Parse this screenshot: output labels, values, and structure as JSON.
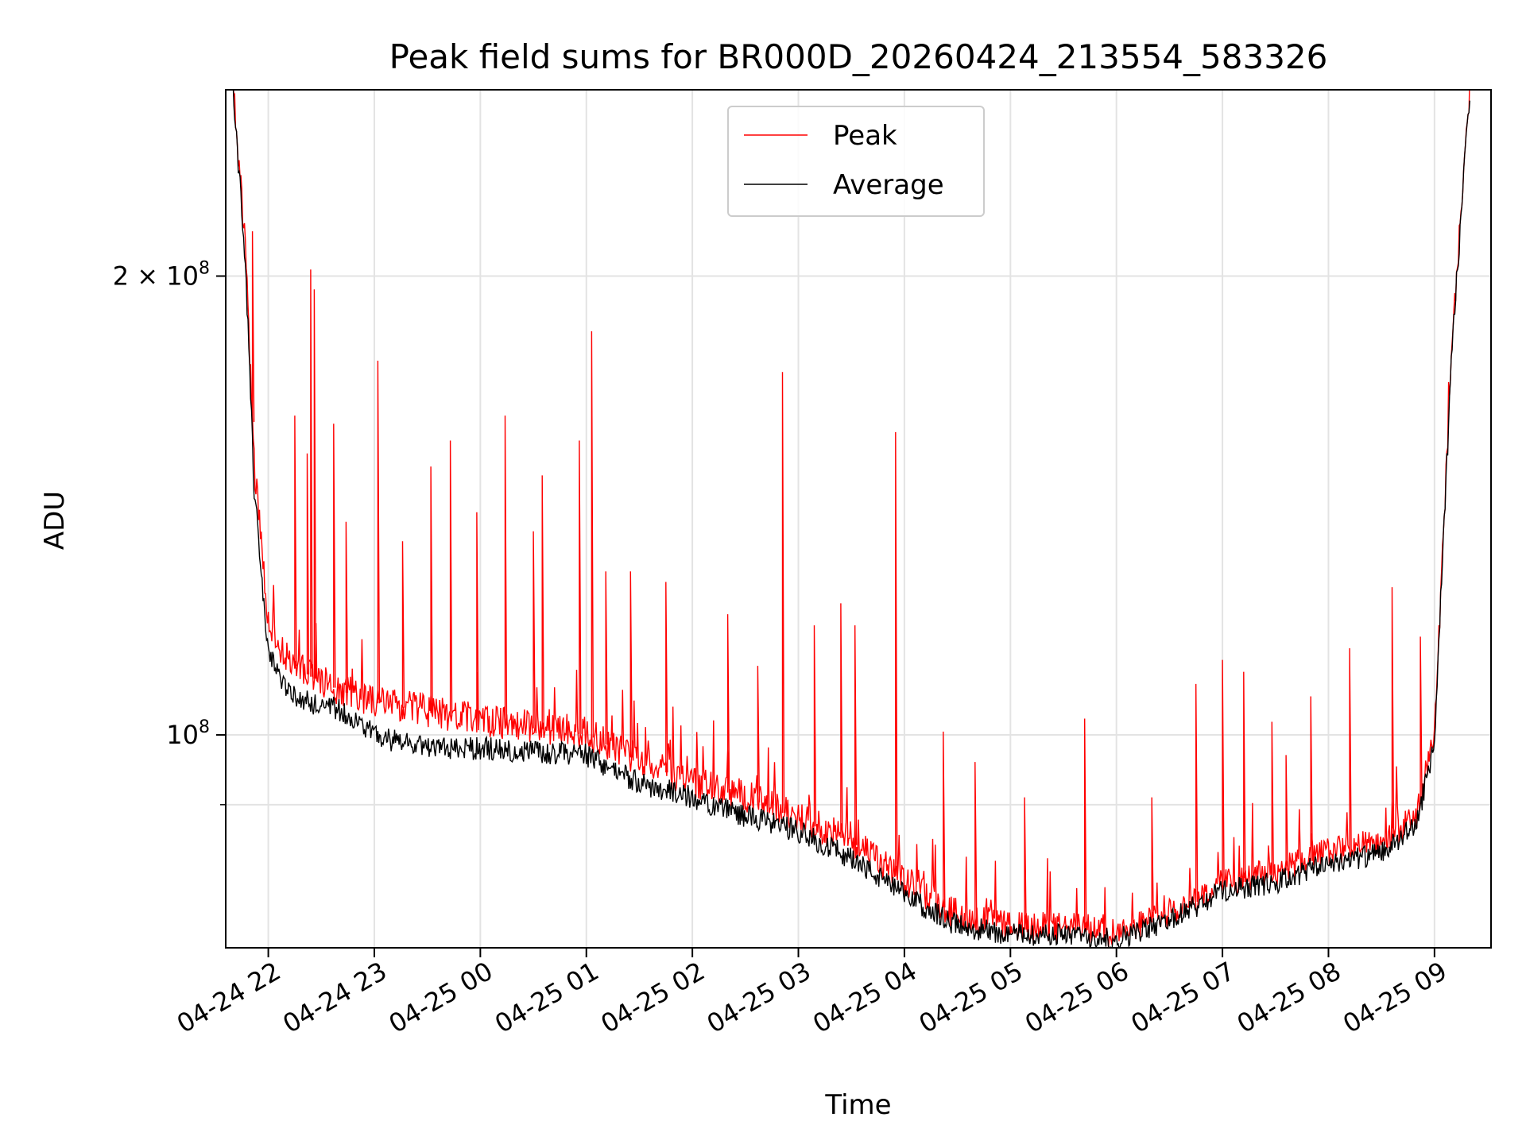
{
  "chart_data": {
    "type": "line",
    "title": "Peak field sums for BR000D_20260424_213554_583326",
    "xlabel": "Time",
    "ylabel": "ADU",
    "y_scale": "log",
    "ylim": [
      72500000,
      265000000
    ],
    "xlim": [
      "2026-04-24 21:35:54",
      "2026-04-25 09:32:00"
    ],
    "grid": true,
    "legend_position": "upper center",
    "x_tick_labels": [
      "04-24 22",
      "04-24 23",
      "04-25 00",
      "04-25 01",
      "04-25 02",
      "04-25 03",
      "04-25 04",
      "04-25 05",
      "04-25 06",
      "04-25 07",
      "04-25 08",
      "04-25 09"
    ],
    "x_tick_values": [
      "2026-04-24 22:00",
      "2026-04-24 23:00",
      "2026-04-25 00:00",
      "2026-04-25 01:00",
      "2026-04-25 02:00",
      "2026-04-25 03:00",
      "2026-04-25 04:00",
      "2026-04-25 05:00",
      "2026-04-25 06:00",
      "2026-04-25 07:00",
      "2026-04-25 08:00",
      "2026-04-25 09:00"
    ],
    "y_ticks": [
      {
        "value": 100000000,
        "label": "10",
        "sup": "8"
      },
      {
        "value": 200000000,
        "label": "2 × 10",
        "sup": "8"
      }
    ],
    "y_minor_ticks": [
      90000000
    ],
    "colors": {
      "peak": "#ff0000",
      "average": "#000000"
    },
    "series": [
      {
        "name": "Peak",
        "color": "#ff0000",
        "x": [
          "2026-04-24 21:40",
          "2026-04-24 21:47",
          "2026-04-24 21:52",
          "2026-04-24 22:00",
          "2026-04-24 22:10",
          "2026-04-24 22:25",
          "2026-04-24 22:40",
          "2026-04-24 23:00",
          "2026-04-24 23:20",
          "2026-04-24 23:40",
          "2026-04-25 00:00",
          "2026-04-25 00:30",
          "2026-04-25 01:00",
          "2026-04-25 01:30",
          "2026-04-25 02:00",
          "2026-04-25 02:30",
          "2026-04-25 03:00",
          "2026-04-25 03:30",
          "2026-04-25 04:00",
          "2026-04-25 04:30",
          "2026-04-25 05:00",
          "2026-04-25 05:30",
          "2026-04-25 06:00",
          "2026-04-25 06:30",
          "2026-04-25 07:00",
          "2026-04-25 07:30",
          "2026-04-25 08:00",
          "2026-04-25 08:30",
          "2026-04-25 08:50",
          "2026-04-25 09:00",
          "2026-04-25 09:10",
          "2026-04-25 09:20"
        ],
        "y": [
          265000000,
          210000000,
          150000000,
          118000000,
          112000000,
          109000000,
          107000000,
          105000000,
          104000000,
          103000000,
          102000000,
          101000000,
          100000000,
          96000000,
          93000000,
          91000000,
          88000000,
          85000000,
          80000000,
          76000000,
          74500000,
          74500000,
          74000000,
          76000000,
          79500000,
          81000000,
          83500000,
          84500000,
          88000000,
          100000000,
          180000000,
          265000000
        ],
        "spikes": [
          [
            "2026-04-24 21:51",
            214000000
          ],
          [
            "2026-04-24 22:15",
            162000000
          ],
          [
            "2026-04-24 22:22",
            153000000
          ],
          [
            "2026-04-24 22:24",
            202000000
          ],
          [
            "2026-04-24 22:26",
            196000000
          ],
          [
            "2026-04-24 22:37",
            160000000
          ],
          [
            "2026-04-24 22:44",
            138000000
          ],
          [
            "2026-04-24 23:02",
            176000000
          ],
          [
            "2026-04-24 23:16",
            134000000
          ],
          [
            "2026-04-24 23:32",
            150000000
          ],
          [
            "2026-04-24 23:43",
            156000000
          ],
          [
            "2026-04-24 23:58",
            140000000
          ],
          [
            "2026-04-25 00:14",
            162000000
          ],
          [
            "2026-04-25 00:30",
            136000000
          ],
          [
            "2026-04-25 00:35",
            148000000
          ],
          [
            "2026-04-25 00:56",
            156000000
          ],
          [
            "2026-04-25 01:03",
            184000000
          ],
          [
            "2026-04-25 01:11",
            128000000
          ],
          [
            "2026-04-25 01:25",
            128000000
          ],
          [
            "2026-04-25 01:45",
            126000000
          ],
          [
            "2026-04-25 02:20",
            120000000
          ],
          [
            "2026-04-25 02:37",
            111000000
          ],
          [
            "2026-04-25 02:51",
            173000000
          ],
          [
            "2026-04-25 03:09",
            118000000
          ],
          [
            "2026-04-25 03:24",
            122000000
          ],
          [
            "2026-04-25 03:32",
            118000000
          ],
          [
            "2026-04-25 03:55",
            158000000
          ],
          [
            "2026-04-25 04:22",
            100500000
          ],
          [
            "2026-04-25 04:40",
            96000000
          ],
          [
            "2026-04-25 05:08",
            91000000
          ],
          [
            "2026-04-25 05:42",
            102500000
          ],
          [
            "2026-04-25 06:20",
            91000000
          ],
          [
            "2026-04-25 06:45",
            108000000
          ],
          [
            "2026-04-25 07:00",
            112000000
          ],
          [
            "2026-04-25 07:12",
            110000000
          ],
          [
            "2026-04-25 07:28",
            102000000
          ],
          [
            "2026-04-25 07:36",
            97000000
          ],
          [
            "2026-04-25 07:50",
            106000000
          ],
          [
            "2026-04-25 08:12",
            114000000
          ],
          [
            "2026-04-25 08:36",
            125000000
          ],
          [
            "2026-04-25 08:52",
            116000000
          ]
        ]
      },
      {
        "name": "Average",
        "color": "#000000",
        "x": [
          "2026-04-24 21:40",
          "2026-04-24 21:47",
          "2026-04-24 21:52",
          "2026-04-24 22:00",
          "2026-04-24 22:10",
          "2026-04-24 22:25",
          "2026-04-24 22:40",
          "2026-04-24 23:00",
          "2026-04-24 23:20",
          "2026-04-24 23:40",
          "2026-04-25 00:00",
          "2026-04-25 00:30",
          "2026-04-25 01:00",
          "2026-04-25 01:30",
          "2026-04-25 02:00",
          "2026-04-25 02:30",
          "2026-04-25 03:00",
          "2026-04-25 03:30",
          "2026-04-25 04:00",
          "2026-04-25 04:30",
          "2026-04-25 05:00",
          "2026-04-25 05:30",
          "2026-04-25 06:00",
          "2026-04-25 06:30",
          "2026-04-25 07:00",
          "2026-04-25 07:30",
          "2026-04-25 08:00",
          "2026-04-25 08:30",
          "2026-04-25 08:50",
          "2026-04-25 09:00",
          "2026-04-25 09:10",
          "2026-04-25 09:20"
        ],
        "y": [
          265000000,
          205000000,
          145000000,
          113000000,
          107000000,
          105000000,
          104000000,
          100000000,
          98500000,
          98000000,
          98000000,
          97500000,
          97000000,
          93000000,
          91000000,
          88500000,
          86500000,
          83000000,
          78500000,
          75000000,
          74000000,
          74000000,
          73500000,
          75500000,
          79000000,
          80000000,
          82500000,
          83500000,
          87500000,
          99000000,
          180000000,
          265000000
        ]
      }
    ]
  }
}
